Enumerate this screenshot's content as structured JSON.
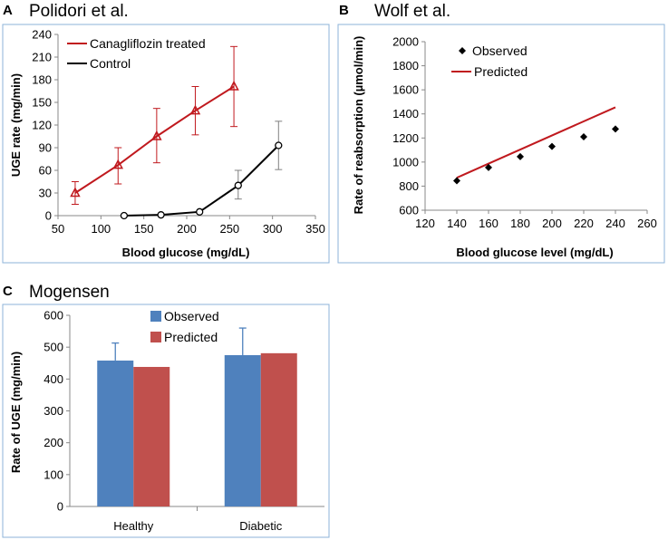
{
  "panels": {
    "a": {
      "letter": "A",
      "title": "Polidori et al."
    },
    "b": {
      "letter": "B",
      "title": "Wolf et al."
    },
    "c": {
      "letter": "C",
      "title": "Mogensen"
    }
  },
  "colors": {
    "frame": "#8db3d9",
    "treated": "#c0191e",
    "control": "#000000",
    "observed_bar": "#4f81bd",
    "predicted_bar": "#c0504d",
    "error_bar": "#808080"
  },
  "chart_data": [
    {
      "id": "a",
      "type": "line",
      "title": "Polidori et al.",
      "xlabel": "Blood glucose (mg/dL)",
      "ylabel": "UGE rate (mg/min)",
      "xlim": [
        50,
        350
      ],
      "ylim": [
        0,
        240
      ],
      "xticks": [
        50,
        100,
        150,
        200,
        250,
        300,
        350
      ],
      "yticks": [
        0,
        30,
        60,
        90,
        120,
        150,
        180,
        210,
        240
      ],
      "legend_position": "top-left",
      "series": [
        {
          "name": "Canagliflozin treated",
          "marker": "triangle",
          "color": "#c0191e",
          "x": [
            70,
            120,
            165,
            210,
            255
          ],
          "y": [
            30,
            67,
            105,
            139,
            171
          ],
          "err_low": [
            15,
            42,
            70,
            107,
            118
          ],
          "err_high": [
            45,
            90,
            142,
            171,
            224
          ]
        },
        {
          "name": "Control",
          "marker": "circle",
          "color": "#000000",
          "x": [
            127,
            170,
            215,
            260,
            307
          ],
          "y": [
            0,
            1,
            5,
            40,
            93
          ],
          "err_low": [
            0,
            0,
            5,
            22,
            61
          ],
          "err_high": [
            0,
            1,
            5,
            60,
            125
          ]
        }
      ]
    },
    {
      "id": "b",
      "type": "scatter",
      "title": "Wolf et al.",
      "xlabel": "Blood glucose level (mg/dL)",
      "ylabel": "Rate of reabsorption (µmol/min)",
      "xlim": [
        120,
        260
      ],
      "ylim": [
        600,
        2000
      ],
      "xticks": [
        120,
        140,
        160,
        180,
        200,
        220,
        240,
        260
      ],
      "yticks": [
        600,
        800,
        1000,
        1200,
        1400,
        1600,
        1800,
        2000
      ],
      "legend_position": "top-left",
      "series": [
        {
          "name": "Observed",
          "marker": "diamond",
          "color": "#000000",
          "x": [
            140,
            160,
            180,
            200,
            220,
            240
          ],
          "y": [
            845,
            955,
            1045,
            1130,
            1210,
            1275
          ]
        },
        {
          "name": "Predicted",
          "marker": "line",
          "color": "#c0191e",
          "x": [
            140,
            240
          ],
          "y": [
            870,
            1455
          ]
        }
      ]
    },
    {
      "id": "c",
      "type": "bar",
      "title": "Mogensen",
      "xlabel": "",
      "ylabel": "Rate of UGE (mg/min)",
      "ylim": [
        0,
        600
      ],
      "yticks": [
        0,
        100,
        200,
        300,
        400,
        500,
        600
      ],
      "categories": [
        "Healthy",
        "Diabetic"
      ],
      "legend_position": "top-center",
      "series": [
        {
          "name": "Observed",
          "color": "#4f81bd",
          "values": [
            458,
            475
          ],
          "err_high": [
            513,
            560
          ]
        },
        {
          "name": "Predicted",
          "color": "#c0504d",
          "values": [
            438,
            481
          ]
        }
      ]
    }
  ]
}
